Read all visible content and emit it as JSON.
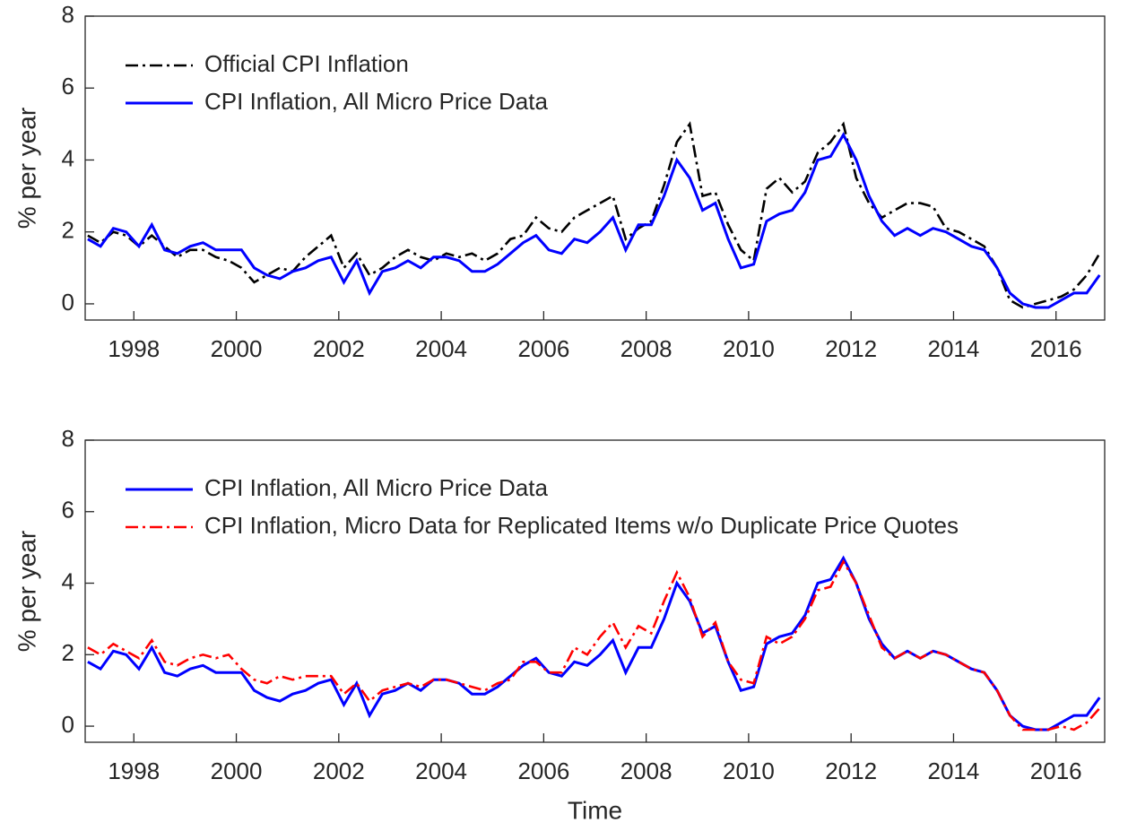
{
  "chart_data": [
    {
      "type": "line",
      "ylabel": "% per year",
      "legend": "upper left",
      "x": [
        1997.1,
        1997.35,
        1997.6,
        1997.85,
        1998.1,
        1998.35,
        1998.6,
        1998.85,
        1999.1,
        1999.35,
        1999.6,
        1999.85,
        2000.1,
        2000.35,
        2000.6,
        2000.85,
        2001.1,
        2001.35,
        2001.6,
        2001.85,
        2002.1,
        2002.35,
        2002.6,
        2002.85,
        2003.1,
        2003.35,
        2003.6,
        2003.85,
        2004.1,
        2004.35,
        2004.6,
        2004.85,
        2005.1,
        2005.35,
        2005.6,
        2005.85,
        2006.1,
        2006.35,
        2006.6,
        2006.85,
        2007.1,
        2007.35,
        2007.6,
        2007.85,
        2008.1,
        2008.35,
        2008.6,
        2008.85,
        2009.1,
        2009.35,
        2009.6,
        2009.85,
        2010.1,
        2010.35,
        2010.6,
        2010.85,
        2011.1,
        2011.35,
        2011.6,
        2011.85,
        2012.1,
        2012.35,
        2012.6,
        2012.85,
        2013.1,
        2013.35,
        2013.6,
        2013.85,
        2014.1,
        2014.35,
        2014.6,
        2014.85,
        2015.1,
        2015.35,
        2015.6,
        2015.85,
        2016.1,
        2016.35,
        2016.6,
        2016.85
      ],
      "series": [
        {
          "name": "Official CPI Inflation",
          "color": "#000000",
          "style": "dashdot",
          "values": [
            1.9,
            1.7,
            2.0,
            1.9,
            1.6,
            1.9,
            1.6,
            1.3,
            1.5,
            1.5,
            1.3,
            1.2,
            1.0,
            0.6,
            0.8,
            1.0,
            0.9,
            1.3,
            1.6,
            1.9,
            1.0,
            1.4,
            0.8,
            1.0,
            1.3,
            1.5,
            1.3,
            1.2,
            1.4,
            1.3,
            1.4,
            1.2,
            1.4,
            1.8,
            1.9,
            2.4,
            2.1,
            2.0,
            2.4,
            2.6,
            2.8,
            3.0,
            1.8,
            2.1,
            2.3,
            3.3,
            4.5,
            5.0,
            3.0,
            3.1,
            2.2,
            1.5,
            1.2,
            3.2,
            3.5,
            3.1,
            3.4,
            4.2,
            4.5,
            5.0,
            3.5,
            2.8,
            2.4,
            2.6,
            2.8,
            2.8,
            2.7,
            2.1,
            2.0,
            1.8,
            1.6,
            1.0,
            0.1,
            -0.1,
            0.0,
            0.1,
            0.2,
            0.4,
            0.8,
            1.4
          ]
        },
        {
          "name": "CPI Inflation, All Micro Price Data",
          "color": "#0000ff",
          "style": "solid",
          "values": [
            1.8,
            1.6,
            2.1,
            2.0,
            1.6,
            2.2,
            1.5,
            1.4,
            1.6,
            1.7,
            1.5,
            1.5,
            1.5,
            1.0,
            0.8,
            0.7,
            0.9,
            1.0,
            1.2,
            1.3,
            0.6,
            1.2,
            0.3,
            0.9,
            1.0,
            1.2,
            1.0,
            1.3,
            1.3,
            1.2,
            0.9,
            0.9,
            1.1,
            1.4,
            1.7,
            1.9,
            1.5,
            1.4,
            1.8,
            1.7,
            2.0,
            2.4,
            1.5,
            2.2,
            2.2,
            3.0,
            4.0,
            3.5,
            2.6,
            2.8,
            1.8,
            1.0,
            1.1,
            2.3,
            2.5,
            2.6,
            3.1,
            4.0,
            4.1,
            4.7,
            4.0,
            3.0,
            2.3,
            1.9,
            2.1,
            1.9,
            2.1,
            2.0,
            1.8,
            1.6,
            1.5,
            1.0,
            0.3,
            0.0,
            -0.1,
            -0.1,
            0.1,
            0.3,
            0.3,
            0.8
          ]
        }
      ],
      "xlim": [
        1997.05,
        2016.95
      ],
      "ylim": [
        -0.45,
        8
      ],
      "xticks": [
        1998,
        2000,
        2002,
        2004,
        2006,
        2008,
        2010,
        2012,
        2014,
        2016
      ],
      "yticks": [
        0,
        2,
        4,
        6,
        8
      ]
    },
    {
      "type": "line",
      "ylabel": "% per year",
      "xlabel": "Time",
      "legend": "upper left",
      "x": [
        1997.1,
        1997.35,
        1997.6,
        1997.85,
        1998.1,
        1998.35,
        1998.6,
        1998.85,
        1999.1,
        1999.35,
        1999.6,
        1999.85,
        2000.1,
        2000.35,
        2000.6,
        2000.85,
        2001.1,
        2001.35,
        2001.6,
        2001.85,
        2002.1,
        2002.35,
        2002.6,
        2002.85,
        2003.1,
        2003.35,
        2003.6,
        2003.85,
        2004.1,
        2004.35,
        2004.6,
        2004.85,
        2005.1,
        2005.35,
        2005.6,
        2005.85,
        2006.1,
        2006.35,
        2006.6,
        2006.85,
        2007.1,
        2007.35,
        2007.6,
        2007.85,
        2008.1,
        2008.35,
        2008.6,
        2008.85,
        2009.1,
        2009.35,
        2009.6,
        2009.85,
        2010.1,
        2010.35,
        2010.6,
        2010.85,
        2011.1,
        2011.35,
        2011.6,
        2011.85,
        2012.1,
        2012.35,
        2012.6,
        2012.85,
        2013.1,
        2013.35,
        2013.6,
        2013.85,
        2014.1,
        2014.35,
        2014.6,
        2014.85,
        2015.1,
        2015.35,
        2015.6,
        2015.85,
        2016.1,
        2016.35,
        2016.6,
        2016.85
      ],
      "series": [
        {
          "name": "CPI Inflation, All Micro Price Data",
          "color": "#0000ff",
          "style": "solid",
          "values": [
            1.8,
            1.6,
            2.1,
            2.0,
            1.6,
            2.2,
            1.5,
            1.4,
            1.6,
            1.7,
            1.5,
            1.5,
            1.5,
            1.0,
            0.8,
            0.7,
            0.9,
            1.0,
            1.2,
            1.3,
            0.6,
            1.2,
            0.3,
            0.9,
            1.0,
            1.2,
            1.0,
            1.3,
            1.3,
            1.2,
            0.9,
            0.9,
            1.1,
            1.4,
            1.7,
            1.9,
            1.5,
            1.4,
            1.8,
            1.7,
            2.0,
            2.4,
            1.5,
            2.2,
            2.2,
            3.0,
            4.0,
            3.5,
            2.6,
            2.8,
            1.8,
            1.0,
            1.1,
            2.3,
            2.5,
            2.6,
            3.1,
            4.0,
            4.1,
            4.7,
            4.0,
            3.0,
            2.3,
            1.9,
            2.1,
            1.9,
            2.1,
            2.0,
            1.8,
            1.6,
            1.5,
            1.0,
            0.3,
            0.0,
            -0.1,
            -0.1,
            0.1,
            0.3,
            0.3,
            0.8
          ]
        },
        {
          "name": "CPI Inflation, Micro Data for Replicated Items w/o Duplicate Price Quotes",
          "color": "#ff0000",
          "style": "dashdot",
          "values": [
            2.2,
            2.0,
            2.3,
            2.1,
            1.9,
            2.4,
            1.8,
            1.7,
            1.9,
            2.0,
            1.9,
            2.0,
            1.6,
            1.3,
            1.2,
            1.4,
            1.3,
            1.4,
            1.4,
            1.4,
            0.9,
            1.2,
            0.7,
            1.0,
            1.1,
            1.2,
            1.1,
            1.3,
            1.3,
            1.2,
            1.1,
            1.0,
            1.2,
            1.3,
            1.8,
            1.8,
            1.5,
            1.5,
            2.2,
            2.0,
            2.5,
            2.9,
            2.2,
            2.8,
            2.6,
            3.5,
            4.3,
            3.6,
            2.5,
            2.9,
            1.8,
            1.3,
            1.2,
            2.5,
            2.3,
            2.5,
            3.0,
            3.8,
            3.9,
            4.6,
            4.0,
            3.1,
            2.2,
            1.9,
            2.1,
            1.9,
            2.1,
            2.0,
            1.8,
            1.6,
            1.5,
            1.0,
            0.3,
            -0.1,
            -0.1,
            -0.1,
            0.0,
            -0.1,
            0.1,
            0.5
          ]
        }
      ],
      "xlim": [
        1997.05,
        2016.95
      ],
      "ylim": [
        -0.45,
        8
      ],
      "xticks": [
        1998,
        2000,
        2002,
        2004,
        2006,
        2008,
        2010,
        2012,
        2014,
        2016
      ],
      "yticks": [
        0,
        2,
        4,
        6,
        8
      ]
    }
  ]
}
